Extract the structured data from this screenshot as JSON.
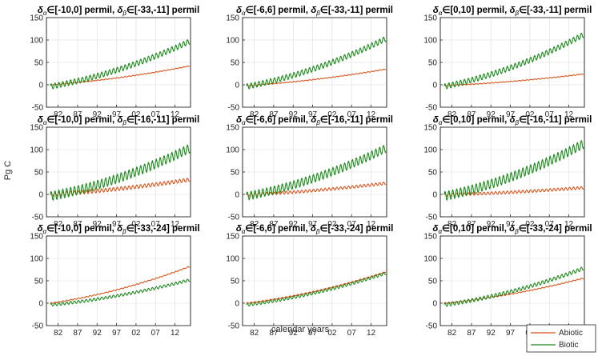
{
  "figure": {
    "ylabel": "Pg C",
    "xlabel": "calendar years",
    "legend": {
      "placement": "bottom-right",
      "entries": [
        {
          "name": "Abiotic",
          "color": "#d95319"
        },
        {
          "name": "Biotic",
          "color": "#1a8a1a"
        }
      ]
    }
  },
  "chart_data": [
    {
      "type": "line",
      "title": {
        "alpha": "[-10,0]",
        "beta": "[-33,-11]"
      },
      "x_range": [
        1979,
        2016
      ],
      "xticks": [
        "82",
        "87",
        "92",
        "97",
        "02",
        "07",
        "12"
      ],
      "ylim": [
        -50,
        150
      ],
      "yticks": [
        "-50",
        "0",
        "50",
        "100",
        "150"
      ],
      "series": [
        {
          "name": "Abiotic",
          "start": 0,
          "end": 42,
          "amplitude": 0.8
        },
        {
          "name": "Biotic",
          "start": -4,
          "end": 97,
          "amplitude": 6
        }
      ]
    },
    {
      "type": "line",
      "title": {
        "alpha": "[-6,6]",
        "beta": "[-33,-11]"
      },
      "x_range": [
        1979,
        2016
      ],
      "xticks": [
        "82",
        "87",
        "92",
        "97",
        "02",
        "07",
        "12"
      ],
      "ylim": [
        -50,
        150
      ],
      "yticks": [
        "-50",
        "0",
        "50",
        "100",
        "150"
      ],
      "series": [
        {
          "name": "Abiotic",
          "start": -2,
          "end": 35,
          "amplitude": 0.8
        },
        {
          "name": "Biotic",
          "start": -4,
          "end": 103,
          "amplitude": 6
        }
      ]
    },
    {
      "type": "line",
      "title": {
        "alpha": "[0,10]",
        "beta": "[-33,-11]"
      },
      "x_range": [
        1979,
        2016
      ],
      "xticks": [
        "82",
        "87",
        "92",
        "97",
        "02",
        "07",
        "12"
      ],
      "ylim": [
        -50,
        150
      ],
      "yticks": [
        "-50",
        "0",
        "50",
        "100",
        "150"
      ],
      "series": [
        {
          "name": "Abiotic",
          "start": -2,
          "end": 24,
          "amplitude": 0.8
        },
        {
          "name": "Biotic",
          "start": -4,
          "end": 112,
          "amplitude": 6
        }
      ]
    },
    {
      "type": "line",
      "title": {
        "alpha": "[-10,0]",
        "beta": "[-16,-11]"
      },
      "x_range": [
        1979,
        2016
      ],
      "xticks": [
        "82",
        "87",
        "92",
        "97",
        "02",
        "07",
        "12"
      ],
      "ylim": [
        -50,
        150
      ],
      "yticks": [
        "-50",
        "0",
        "50",
        "100",
        "150"
      ],
      "series": [
        {
          "name": "Abiotic",
          "start": 0,
          "end": 33,
          "amplitude": 4
        },
        {
          "name": "Biotic",
          "start": -4,
          "end": 103,
          "amplitude": 10
        }
      ]
    },
    {
      "type": "line",
      "title": {
        "alpha": "[-6,6]",
        "beta": "[-16,-11]"
      },
      "x_range": [
        1979,
        2016
      ],
      "xticks": [
        "82",
        "87",
        "92",
        "97",
        "02",
        "07",
        "12"
      ],
      "ylim": [
        -50,
        150
      ],
      "yticks": [
        "-50",
        "0",
        "50",
        "100",
        "150"
      ],
      "series": [
        {
          "name": "Abiotic",
          "start": -1,
          "end": 25,
          "amplitude": 3
        },
        {
          "name": "Biotic",
          "start": -4,
          "end": 103,
          "amplitude": 9
        }
      ]
    },
    {
      "type": "line",
      "title": {
        "alpha": "[0,10]",
        "beta": "[-16,-11]"
      },
      "x_range": [
        1979,
        2016
      ],
      "xticks": [
        "82",
        "87",
        "92",
        "97",
        "02",
        "07",
        "12"
      ],
      "ylim": [
        -50,
        150
      ],
      "yticks": [
        "-50",
        "0",
        "50",
        "100",
        "150"
      ],
      "series": [
        {
          "name": "Abiotic",
          "start": -1,
          "end": 15,
          "amplitude": 3
        },
        {
          "name": "Biotic",
          "start": -4,
          "end": 113,
          "amplitude": 10
        }
      ]
    },
    {
      "type": "line",
      "title": {
        "alpha": "[-10,0]",
        "beta": "[-33,-24]"
      },
      "x_range": [
        1979,
        2016
      ],
      "xticks": [
        "82",
        "87",
        "92",
        "97",
        "02",
        "07",
        "12"
      ],
      "ylim": [
        -50,
        150
      ],
      "yticks": [
        "-50",
        "0",
        "50",
        "100",
        "150"
      ],
      "series": [
        {
          "name": "Abiotic",
          "start": 0,
          "end": 82,
          "amplitude": 1
        },
        {
          "name": "Biotic",
          "start": -4,
          "end": 52,
          "amplitude": 3
        }
      ]
    },
    {
      "type": "line",
      "title": {
        "alpha": "[-6,6]",
        "beta": "[-33,-24]"
      },
      "x_range": [
        1979,
        2016
      ],
      "xticks": [
        "82",
        "87",
        "92",
        "97",
        "02",
        "07",
        "12"
      ],
      "ylim": [
        -50,
        150
      ],
      "yticks": [
        "-50",
        "0",
        "50",
        "100",
        "150"
      ],
      "series": [
        {
          "name": "Abiotic",
          "start": 0,
          "end": 70,
          "amplitude": 1
        },
        {
          "name": "Biotic",
          "start": -4,
          "end": 67,
          "amplitude": 3
        }
      ]
    },
    {
      "type": "line",
      "title": {
        "alpha": "[0,10]",
        "beta": "[-33,-24]"
      },
      "x_range": [
        1979,
        2016
      ],
      "xticks": [
        "82",
        "87",
        "92",
        "97",
        "02",
        "07",
        "12"
      ],
      "ylim": [
        -50,
        150
      ],
      "yticks": [
        "-50",
        "0",
        "50",
        "100",
        "150"
      ],
      "series": [
        {
          "name": "Abiotic",
          "start": 0,
          "end": 56,
          "amplitude": 1
        },
        {
          "name": "Biotic",
          "start": -4,
          "end": 78,
          "amplitude": 4
        }
      ]
    }
  ]
}
